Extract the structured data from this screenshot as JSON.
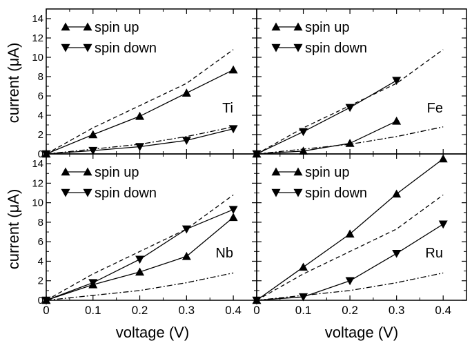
{
  "chart_data": [
    {
      "type": "line",
      "panel": "top-left",
      "annotation": "Ti",
      "x": [
        0,
        0.1,
        0.2,
        0.3,
        0.4
      ],
      "series": [
        {
          "name": "spin up",
          "marker": "triangle-up",
          "style": "solid",
          "values": [
            0,
            2.0,
            3.9,
            6.3,
            8.7
          ]
        },
        {
          "name": "spin down",
          "marker": "triangle-down",
          "style": "solid",
          "values": [
            0,
            0.35,
            0.75,
            1.4,
            2.6
          ]
        },
        {
          "style": "dashed",
          "values": [
            0,
            2.7,
            5.0,
            7.3,
            10.8
          ]
        },
        {
          "style": "dash-dot",
          "values": [
            0,
            0.5,
            1.0,
            1.8,
            2.8
          ]
        }
      ],
      "xlim": [
        0,
        0.45
      ],
      "ylim": [
        0,
        15
      ]
    },
    {
      "type": "line",
      "panel": "top-right",
      "annotation": "Fe",
      "x": [
        0,
        0.1,
        0.2,
        0.3,
        0.4
      ],
      "series": [
        {
          "name": "spin up",
          "marker": "triangle-up",
          "style": "solid",
          "values": [
            0,
            0.3,
            1.1,
            3.4,
            null
          ]
        },
        {
          "name": "spin down",
          "marker": "triangle-down",
          "style": "solid",
          "values": [
            0,
            2.3,
            4.8,
            7.6,
            null
          ]
        },
        {
          "style": "dashed",
          "values": [
            0,
            2.7,
            5.0,
            7.3,
            10.8
          ]
        },
        {
          "style": "dash-dot",
          "values": [
            0,
            0.5,
            1.0,
            1.8,
            2.8
          ]
        }
      ],
      "xlim": [
        0,
        0.45
      ],
      "ylim": [
        0,
        15
      ]
    },
    {
      "type": "line",
      "panel": "bottom-left",
      "annotation": "Nb",
      "x": [
        0,
        0.1,
        0.2,
        0.3,
        0.4
      ],
      "series": [
        {
          "name": "spin up",
          "marker": "triangle-up",
          "style": "solid",
          "values": [
            0,
            1.6,
            2.9,
            4.5,
            8.5
          ]
        },
        {
          "name": "spin down",
          "marker": "triangle-down",
          "style": "solid",
          "values": [
            0,
            1.8,
            4.2,
            7.3,
            9.3
          ]
        },
        {
          "style": "dashed",
          "values": [
            0,
            2.7,
            5.0,
            7.3,
            10.8
          ]
        },
        {
          "style": "dash-dot",
          "values": [
            0,
            0.5,
            1.0,
            1.8,
            2.8
          ]
        }
      ],
      "xlim": [
        0,
        0.45
      ],
      "ylim": [
        0,
        15
      ]
    },
    {
      "type": "line",
      "panel": "bottom-right",
      "annotation": "Ru",
      "x": [
        0,
        0.1,
        0.2,
        0.3,
        0.4
      ],
      "series": [
        {
          "name": "spin up",
          "marker": "triangle-up",
          "style": "solid",
          "values": [
            0,
            3.4,
            6.8,
            10.9,
            14.5
          ]
        },
        {
          "name": "spin down",
          "marker": "triangle-down",
          "style": "solid",
          "values": [
            0,
            0.35,
            2.0,
            4.8,
            7.8
          ]
        },
        {
          "style": "dashed",
          "values": [
            0,
            2.7,
            5.0,
            7.3,
            10.8
          ]
        },
        {
          "style": "dash-dot",
          "values": [
            0,
            0.5,
            1.0,
            1.8,
            2.8
          ]
        }
      ],
      "xlim": [
        0,
        0.45
      ],
      "ylim": [
        0,
        15
      ]
    }
  ],
  "axes": {
    "ylabel": "current (μA)",
    "xlabel": "voltage (V)",
    "x_ticks": [
      "0",
      "0.1",
      "0.2",
      "0.3",
      "0.4"
    ],
    "y_ticks": [
      "0",
      "2",
      "4",
      "6",
      "8",
      "10",
      "12",
      "14"
    ],
    "legend_position": "top-left"
  }
}
